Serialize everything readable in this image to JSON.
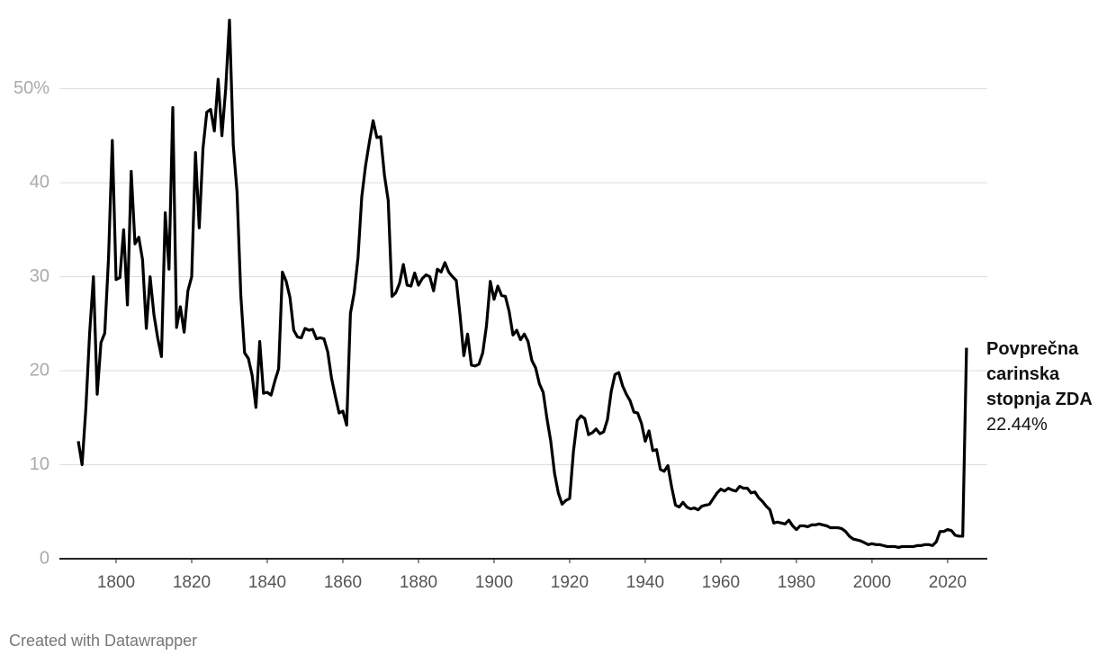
{
  "chart_data": {
    "type": "line",
    "x": [
      1790,
      1791,
      1792,
      1793,
      1794,
      1795,
      1796,
      1797,
      1798,
      1799,
      1800,
      1801,
      1802,
      1803,
      1804,
      1805,
      1806,
      1807,
      1808,
      1809,
      1810,
      1811,
      1812,
      1813,
      1814,
      1815,
      1816,
      1817,
      1818,
      1819,
      1820,
      1821,
      1822,
      1823,
      1824,
      1825,
      1826,
      1827,
      1828,
      1829,
      1830,
      1831,
      1832,
      1833,
      1834,
      1835,
      1836,
      1837,
      1838,
      1839,
      1840,
      1841,
      1842,
      1843,
      1844,
      1845,
      1846,
      1847,
      1848,
      1849,
      1850,
      1851,
      1852,
      1853,
      1854,
      1855,
      1856,
      1857,
      1858,
      1859,
      1860,
      1861,
      1862,
      1863,
      1864,
      1865,
      1866,
      1867,
      1868,
      1869,
      1870,
      1871,
      1872,
      1873,
      1874,
      1875,
      1876,
      1877,
      1878,
      1879,
      1880,
      1881,
      1882,
      1883,
      1884,
      1885,
      1886,
      1887,
      1888,
      1889,
      1890,
      1891,
      1892,
      1893,
      1894,
      1895,
      1896,
      1897,
      1898,
      1899,
      1900,
      1901,
      1902,
      1903,
      1904,
      1905,
      1906,
      1907,
      1908,
      1909,
      1910,
      1911,
      1912,
      1913,
      1914,
      1915,
      1916,
      1917,
      1918,
      1919,
      1920,
      1921,
      1922,
      1923,
      1924,
      1925,
      1926,
      1927,
      1928,
      1929,
      1930,
      1931,
      1932,
      1933,
      1934,
      1935,
      1936,
      1937,
      1938,
      1939,
      1940,
      1941,
      1942,
      1943,
      1944,
      1945,
      1946,
      1947,
      1948,
      1949,
      1950,
      1951,
      1952,
      1953,
      1954,
      1955,
      1956,
      1957,
      1958,
      1959,
      1960,
      1961,
      1962,
      1963,
      1964,
      1965,
      1966,
      1967,
      1968,
      1969,
      1970,
      1971,
      1972,
      1973,
      1974,
      1975,
      1976,
      1977,
      1978,
      1979,
      1980,
      1981,
      1982,
      1983,
      1984,
      1985,
      1986,
      1987,
      1988,
      1989,
      1990,
      1991,
      1992,
      1993,
      1994,
      1995,
      1996,
      1997,
      1998,
      1999,
      2000,
      2001,
      2002,
      2003,
      2004,
      2005,
      2006,
      2007,
      2008,
      2009,
      2010,
      2011,
      2012,
      2013,
      2014,
      2015,
      2016,
      2017,
      2018,
      2019,
      2020,
      2021,
      2022,
      2023,
      2024,
      2025
    ],
    "series": [
      {
        "color": "#000000",
        "values": [
          12.5,
          10,
          16,
          24,
          30,
          17.5,
          23,
          24,
          32,
          44.5,
          29.7,
          29.9,
          35,
          27,
          41.2,
          33.5,
          34.2,
          31.8,
          24.5,
          30,
          26,
          23.5,
          21.5,
          36.8,
          30.8,
          48,
          24.6,
          26.8,
          24.1,
          28.5,
          30,
          43.2,
          35.2,
          43.7,
          47.5,
          47.8,
          45.5,
          51,
          45,
          50,
          57.3,
          44,
          39,
          28,
          21.9,
          21.3,
          19.5,
          16.1,
          23.1,
          17.6,
          17.7,
          17.4,
          18.9,
          20.2,
          30.5,
          29.5,
          27.8,
          24.3,
          23.6,
          23.5,
          24.5,
          24.3,
          24.4,
          23.4,
          23.5,
          23.4,
          22,
          19.2,
          17.3,
          15.5,
          15.7,
          14.2,
          26.1,
          28.3,
          32,
          38.5,
          41.8,
          44.3,
          46.6,
          44.8,
          44.9,
          40.8,
          38.1,
          27.9,
          28.3,
          29.3,
          31.3,
          29.1,
          29,
          30.4,
          29.1,
          29.8,
          30.2,
          30,
          28.5,
          30.8,
          30.5,
          31.5,
          30.5,
          30,
          29.6,
          25.9,
          21.6,
          23.9,
          20.6,
          20.5,
          20.7,
          21.9,
          24.8,
          29.5,
          27.6,
          29,
          28,
          27.9,
          26.3,
          23.8,
          24.3,
          23.3,
          23.9,
          23.1,
          21.1,
          20.3,
          18.6,
          17.7,
          14.9,
          12.5,
          9.1,
          7,
          5.8,
          6.2,
          6.4,
          11.4,
          14.7,
          15.2,
          14.9,
          13.2,
          13.4,
          13.8,
          13.3,
          13.5,
          14.8,
          17.8,
          19.6,
          19.8,
          18.4,
          17.5,
          16.8,
          15.6,
          15.5,
          14.4,
          12.5,
          13.6,
          11.5,
          11.6,
          9.5,
          9.3,
          9.9,
          7.6,
          5.7,
          5.5,
          6,
          5.5,
          5.3,
          5.4,
          5.2,
          5.6,
          5.7,
          5.8,
          6.4,
          7,
          7.4,
          7.2,
          7.5,
          7.3,
          7.2,
          7.7,
          7.5,
          7.5,
          7,
          7.1,
          6.5,
          6.1,
          5.6,
          5.2,
          3.8,
          3.9,
          3.8,
          3.7,
          4.1,
          3.5,
          3.1,
          3.5,
          3.5,
          3.4,
          3.6,
          3.6,
          3.7,
          3.6,
          3.5,
          3.3,
          3.3,
          3.3,
          3.2,
          2.9,
          2.4,
          2.1,
          2,
          1.9,
          1.7,
          1.5,
          1.6,
          1.5,
          1.5,
          1.4,
          1.3,
          1.3,
          1.3,
          1.2,
          1.3,
          1.3,
          1.3,
          1.3,
          1.4,
          1.4,
          1.5,
          1.5,
          1.4,
          1.8,
          2.9,
          2.9,
          3.1,
          3,
          2.5,
          2.4,
          2.4,
          22.44
        ]
      }
    ],
    "annotation": {
      "title": "Povprečna carinska stopnja ZDA",
      "value": 22.44,
      "label": "22.44%"
    },
    "xlim": [
      1785,
      2030.5
    ],
    "xticks": [
      1800,
      1820,
      1840,
      1860,
      1880,
      1900,
      1920,
      1940,
      1960,
      1980,
      2000,
      2020
    ],
    "ylim": [
      0,
      58
    ],
    "yticks": [
      0,
      10,
      20,
      30,
      40,
      {
        "value": 50,
        "label": "50%"
      }
    ],
    "grid": true,
    "footer": "Created with Datawrapper"
  }
}
